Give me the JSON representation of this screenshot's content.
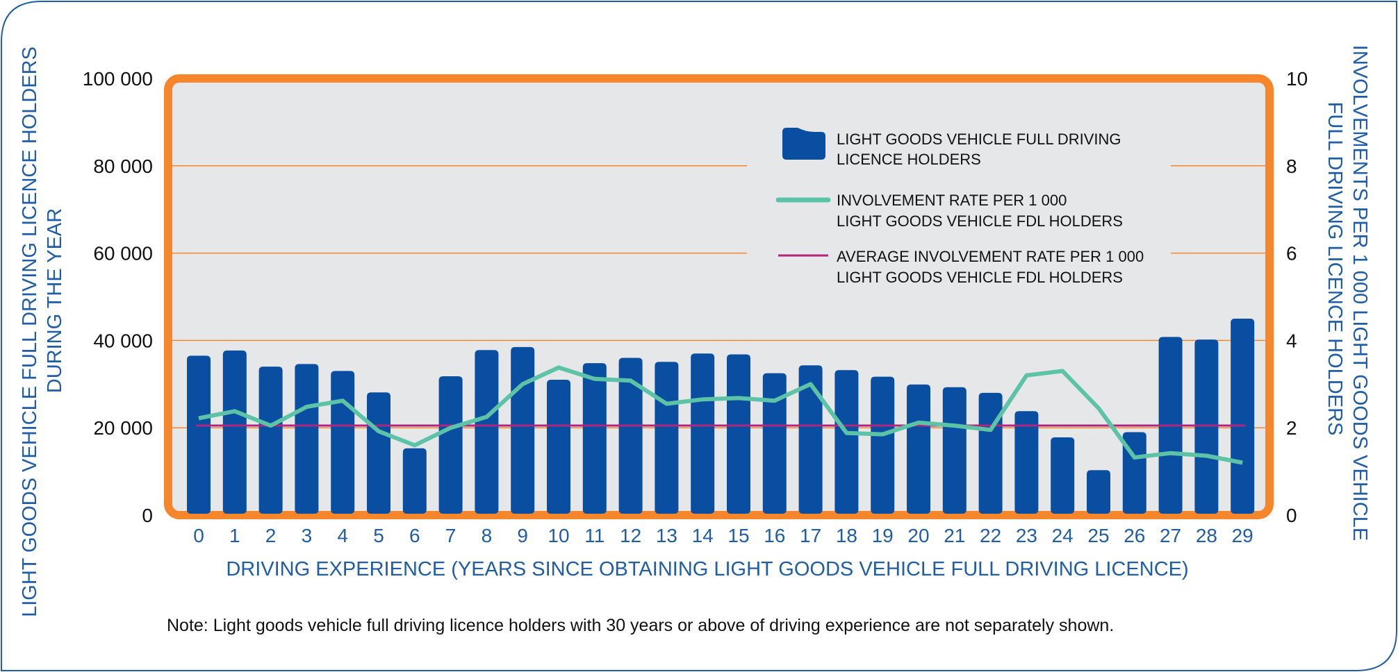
{
  "chart_data": {
    "type": "bar",
    "categories": [
      "0",
      "1",
      "2",
      "3",
      "4",
      "5",
      "6",
      "7",
      "8",
      "9",
      "10",
      "11",
      "12",
      "13",
      "14",
      "15",
      "16",
      "17",
      "18",
      "19",
      "20",
      "21",
      "22",
      "23",
      "24",
      "25",
      "26",
      "27",
      "28",
      "29"
    ],
    "series": [
      {
        "name": "LIGHT GOODS VEHICLE FULL DRIVING LICENCE HOLDERS",
        "type": "bar",
        "axis": "left",
        "color": "#0a4ea2",
        "values": [
          36500,
          37700,
          34000,
          34600,
          33000,
          28100,
          15300,
          31800,
          37800,
          38500,
          31000,
          34800,
          36000,
          35100,
          37000,
          36800,
          32500,
          34300,
          33200,
          31700,
          29900,
          29300,
          28000,
          23800,
          17800,
          10300,
          19000,
          40800,
          40200,
          45000
        ]
      },
      {
        "name": "INVOLVEMENT RATE PER 1 000 LIGHT GOODS VEHICLE FDL HOLDERS",
        "type": "line",
        "axis": "right",
        "color": "#5cc3a7",
        "values": [
          2.22,
          2.38,
          2.05,
          2.48,
          2.62,
          1.92,
          1.6,
          2.0,
          2.25,
          3.0,
          3.38,
          3.12,
          3.08,
          2.55,
          2.65,
          2.68,
          2.62,
          3.0,
          1.88,
          1.85,
          2.12,
          2.05,
          1.95,
          3.2,
          3.3,
          2.45,
          1.32,
          1.42,
          1.36,
          1.2
        ]
      },
      {
        "name": "AVERAGE INVOLVEMENT RATE PER 1 000 LIGHT GOODS VEHICLE FDL HOLDERS",
        "type": "line",
        "axis": "right",
        "color": "#b1257f",
        "value": 2.05
      }
    ],
    "legend": [
      {
        "line1": "LIGHT GOODS VEHICLE FULL DRIVING",
        "line2": "LICENCE HOLDERS"
      },
      {
        "line1": "INVOLVEMENT RATE PER 1 000",
        "line2": "LIGHT GOODS VEHICLE FDL HOLDERS"
      },
      {
        "line1": "AVERAGE INVOLVEMENT RATE PER 1 000",
        "line2": "LIGHT GOODS VEHICLE FDL HOLDERS"
      }
    ],
    "legend_position": "top-right",
    "yleft_ticks": [
      "0",
      "20 000",
      "40 000",
      "60 000",
      "80 000",
      "100 000"
    ],
    "yleft_lim": [
      0,
      100000
    ],
    "yright_ticks": [
      "0",
      "2",
      "4",
      "6",
      "8",
      "10"
    ],
    "yright_lim": [
      0,
      10
    ],
    "ylabel_left_lines": [
      "LIGHT GOODS VEHICLE FULL DRIVING LICENCE HOLDERS",
      "DURING THE YEAR"
    ],
    "ylabel_right_lines": [
      "INVOLVEMENTS PER 1 000 LIGHT GOODS VEHICLE",
      "FULL DRIVING LICENCE  HOLDERS"
    ],
    "xlabel": "DRIVING EXPERIENCE (YEARS SINCE OBTAINING LIGHT GOODS VEHICLE FULL DRIVING LICENCE)",
    "grid": true,
    "note": "Note: Light goods vehicle full driving licence holders with 30 years or above of driving experience are not separately shown."
  }
}
